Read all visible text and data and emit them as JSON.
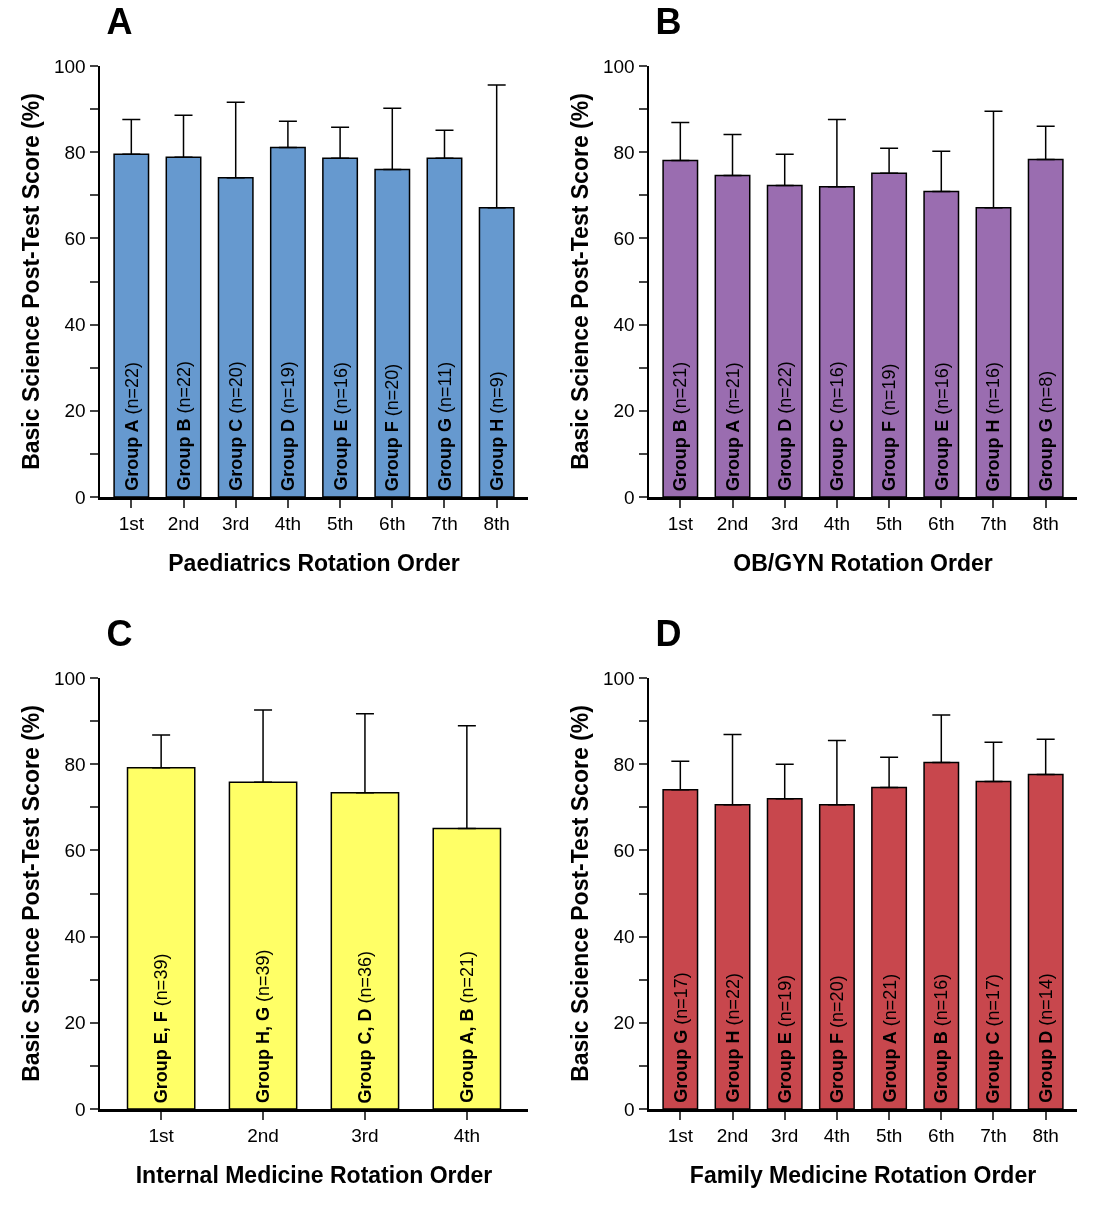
{
  "chart_data": [
    {
      "type": "bar",
      "title": "A",
      "xlabel": "Paediatrics Rotation Order",
      "ylabel": "Basic Science Post-Test Score (%)",
      "categories": [
        "1st",
        "2nd",
        "3rd",
        "4th",
        "5th",
        "6th",
        "7th",
        "8th"
      ],
      "values": [
        79.5,
        78.8,
        74.1,
        81.1,
        78.6,
        76.0,
        78.6,
        67.1
      ],
      "errors": [
        [
          79.5,
          87.6
        ],
        [
          78.8,
          88.6
        ],
        [
          74.1,
          91.6
        ],
        [
          81.1,
          87.2
        ],
        [
          78.6,
          85.8
        ],
        [
          76.0,
          90.2
        ],
        [
          78.6,
          85.1
        ],
        [
          67.1,
          95.6
        ]
      ],
      "color": "#6699cf",
      "ylim": [
        0,
        100
      ],
      "yticks": [
        0,
        {
          "value": 10,
          "label": null
        },
        20,
        {
          "value": 30,
          "label": null
        },
        40,
        {
          "value": 50,
          "label": null
        },
        60,
        {
          "value": 70,
          "label": null
        },
        80,
        {
          "value": 90,
          "label": null
        },
        100
      ],
      "grid": false,
      "annotations": [
        {
          "text": "Group A (n=22)",
          "x": "1st",
          "y": 0
        },
        {
          "text": "Group B (n=22)",
          "x": "2nd",
          "y": 0
        },
        {
          "text": "Group C (n=20)",
          "x": "3rd",
          "y": 0
        },
        {
          "text": "Group D (n=19)",
          "x": "4th",
          "y": 0
        },
        {
          "text": "Group E (n=16)",
          "x": "5th",
          "y": 0
        },
        {
          "text": "Group F (n=20)",
          "x": "6th",
          "y": 0
        },
        {
          "text": "Group G (n=11)",
          "x": "7th",
          "y": 0
        },
        {
          "text": "Group H (n=9)",
          "x": "8th",
          "y": 0
        }
      ]
    },
    {
      "type": "bar",
      "title": "B",
      "xlabel": "OB/GYN Rotation Order",
      "ylabel": "Basic Science Post-Test Score (%)",
      "categories": [
        "1st",
        "2nd",
        "3rd",
        "4th",
        "5th",
        "6th",
        "7th",
        "8th"
      ],
      "values": [
        78.1,
        74.6,
        72.3,
        72.0,
        75.1,
        70.9,
        67.1,
        78.3
      ],
      "errors": [
        [
          78.1,
          86.9
        ],
        [
          74.6,
          84.1
        ],
        [
          72.3,
          79.5
        ],
        [
          72.0,
          87.6
        ],
        [
          75.1,
          80.9
        ],
        [
          70.9,
          80.2
        ],
        [
          67.1,
          89.5
        ],
        [
          78.3,
          86.0
        ]
      ],
      "color": "#9a6db0",
      "ylim": [
        0,
        100
      ],
      "yticks": [
        0,
        {
          "value": 10,
          "label": null
        },
        20,
        {
          "value": 30,
          "label": null
        },
        40,
        {
          "value": 50,
          "label": null
        },
        60,
        {
          "value": 70,
          "label": null
        },
        80,
        {
          "value": 90,
          "label": null
        },
        100
      ],
      "grid": false,
      "annotations": [
        {
          "text": "Group B (n=21)",
          "x": "1st",
          "y": 0
        },
        {
          "text": "Group A (n=21)",
          "x": "2nd",
          "y": 0
        },
        {
          "text": "Group D (n=22)",
          "x": "3rd",
          "y": 0
        },
        {
          "text": "Group C (n=16)",
          "x": "4th",
          "y": 0
        },
        {
          "text": "Group F (n=19)",
          "x": "5th",
          "y": 0
        },
        {
          "text": "Group E (n=16)",
          "x": "6th",
          "y": 0
        },
        {
          "text": "Group H (n=16)",
          "x": "7th",
          "y": 0
        },
        {
          "text": "Group G (n=8)",
          "x": "8th",
          "y": 0
        }
      ]
    },
    {
      "type": "bar",
      "title": "C",
      "xlabel": "Internal Medicine Rotation Order",
      "ylabel": "Basic Science Post-Test Score (%)",
      "categories": [
        "1st",
        "2nd",
        "3rd",
        "4th"
      ],
      "values": [
        79.2,
        75.8,
        73.4,
        65.1
      ],
      "errors": [
        [
          79.2,
          86.8
        ],
        [
          75.8,
          92.6
        ],
        [
          73.4,
          91.7
        ],
        [
          65.1,
          88.9
        ]
      ],
      "color": "#ffff66",
      "ylim": [
        0,
        100
      ],
      "yticks": [
        0,
        {
          "value": 10,
          "label": null
        },
        20,
        {
          "value": 30,
          "label": null
        },
        40,
        {
          "value": 50,
          "label": null
        },
        60,
        {
          "value": 70,
          "label": null
        },
        80,
        {
          "value": 90,
          "label": null
        },
        100
      ],
      "grid": false,
      "annotations": [
        {
          "text": "Group E, F (n=39)",
          "x": "1st",
          "y": 0
        },
        {
          "text": "Group H, G (n=39)",
          "x": "2nd",
          "y": 0
        },
        {
          "text": "Group C, D (n=36)",
          "x": "3rd",
          "y": 0
        },
        {
          "text": "Group A, B (n=21)",
          "x": "4th",
          "y": 0
        }
      ]
    },
    {
      "type": "bar",
      "title": "D",
      "xlabel": "Family Medicine Rotation Order",
      "ylabel": "Basic Science Post-Test Score (%)",
      "categories": [
        "1st",
        "2nd",
        "3rd",
        "4th",
        "5th",
        "6th",
        "7th",
        "8th"
      ],
      "values": [
        74.1,
        70.6,
        72.0,
        70.6,
        74.6,
        80.4,
        76.0,
        77.6
      ],
      "errors": [
        [
          74.1,
          80.7
        ],
        [
          70.6,
          86.9
        ],
        [
          72.0,
          80.0
        ],
        [
          70.6,
          85.5
        ],
        [
          74.6,
          81.6
        ],
        [
          80.4,
          91.4
        ],
        [
          76.0,
          85.1
        ],
        [
          77.6,
          85.8
        ]
      ],
      "color": "#c8474d",
      "ylim": [
        0,
        100
      ],
      "yticks": [
        0,
        {
          "value": 10,
          "label": null
        },
        20,
        {
          "value": 30,
          "label": null
        },
        40,
        {
          "value": 50,
          "label": null
        },
        60,
        {
          "value": 70,
          "label": null
        },
        80,
        {
          "value": 90,
          "label": null
        },
        100
      ],
      "grid": false,
      "annotations": [
        {
          "text": "Group G (n=17)",
          "x": "1st",
          "y": 0
        },
        {
          "text": "Group H (n=22)",
          "x": "2nd",
          "y": 0
        },
        {
          "text": "Group E (n=19)",
          "x": "3rd",
          "y": 0
        },
        {
          "text": "Group F (n=20)",
          "x": "4th",
          "y": 0
        },
        {
          "text": "Group A (n=21)",
          "x": "5th",
          "y": 0
        },
        {
          "text": "Group B (n=16)",
          "x": "6th",
          "y": 0
        },
        {
          "text": "Group C (n=17)",
          "x": "7th",
          "y": 0
        },
        {
          "text": "Group D (n=14)",
          "x": "8th",
          "y": 0
        }
      ]
    }
  ]
}
